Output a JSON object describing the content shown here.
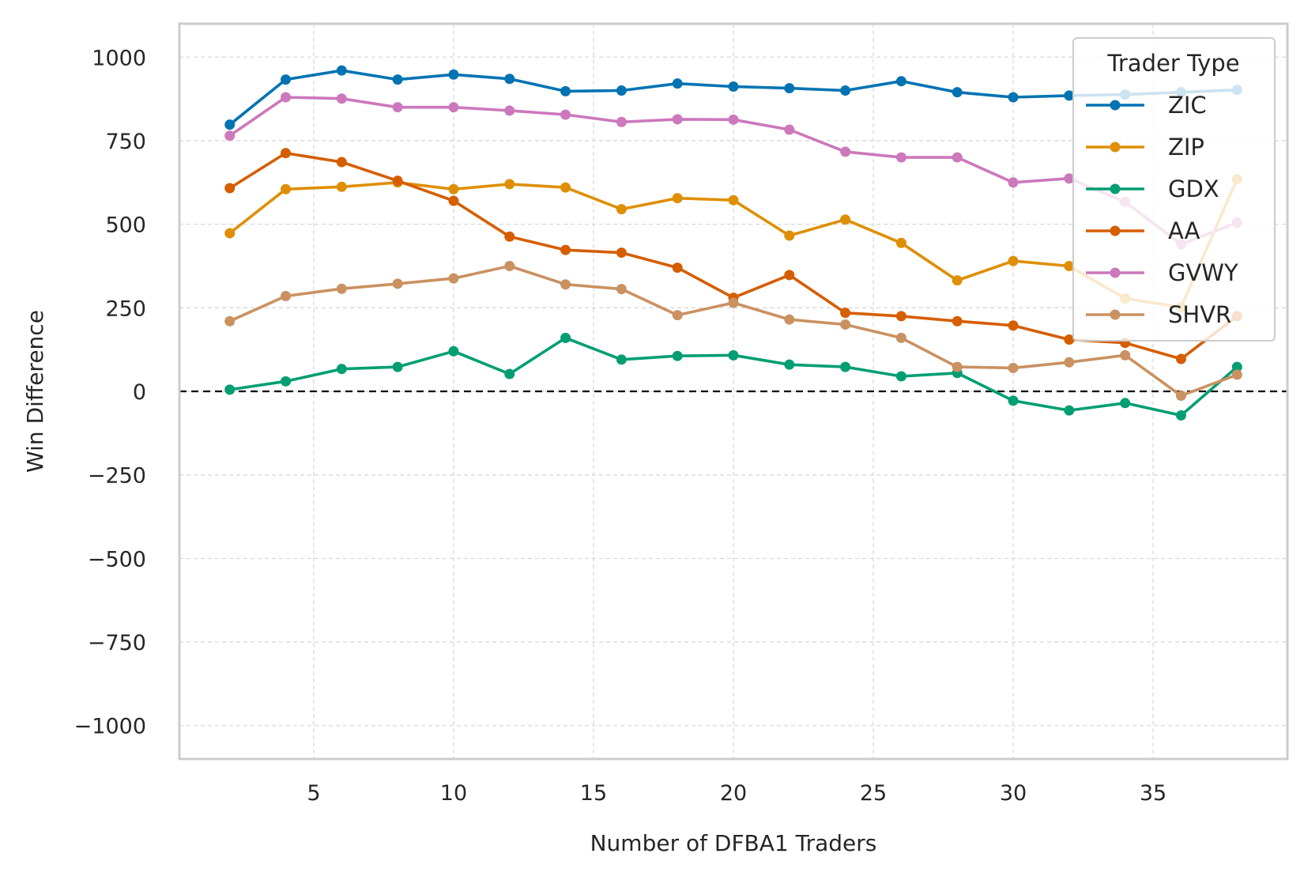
{
  "chart_data": {
    "type": "line",
    "title": "",
    "xlabel": "Number of DFBA1 Traders",
    "ylabel": "Win Difference",
    "xlim": [
      0.2,
      39.8
    ],
    "ylim": [
      -1100,
      1100
    ],
    "xticks": [
      5,
      10,
      15,
      20,
      25,
      30,
      35
    ],
    "yticks": [
      -1000,
      -750,
      -500,
      -250,
      0,
      250,
      500,
      750,
      1000
    ],
    "ytick_labels": [
      "−1000",
      "−750",
      "−500",
      "−250",
      "0",
      "250",
      "500",
      "750",
      "1000"
    ],
    "grid": true,
    "reference_line": 0,
    "legend": {
      "title": "Trader Type",
      "placement": "top-right"
    },
    "x": [
      2,
      4,
      6,
      8,
      10,
      12,
      14,
      16,
      18,
      20,
      22,
      24,
      26,
      28,
      30,
      32,
      34,
      36,
      38
    ],
    "series": [
      {
        "name": "ZIC",
        "color": "#0173b2",
        "values": [
          798,
          933,
          960,
          933,
          948,
          935,
          898,
          900,
          921,
          912,
          907,
          900,
          928,
          895,
          880,
          885,
          888,
          895,
          902
        ]
      },
      {
        "name": "ZIP",
        "color": "#de8f05",
        "values": [
          473,
          605,
          612,
          625,
          605,
          620,
          610,
          545,
          578,
          572,
          466,
          514,
          444,
          332,
          390,
          375,
          278,
          252,
          635
        ]
      },
      {
        "name": "GDX",
        "color": "#029e73",
        "values": [
          5,
          30,
          67,
          73,
          120,
          52,
          160,
          95,
          106,
          108,
          80,
          73,
          45,
          55,
          -28,
          -57,
          -35,
          -72,
          73
        ]
      },
      {
        "name": "AA",
        "color": "#d55e00",
        "values": [
          608,
          713,
          686,
          630,
          570,
          463,
          423,
          415,
          370,
          280,
          348,
          235,
          225,
          210,
          197,
          155,
          145,
          97,
          225
        ]
      },
      {
        "name": "GVWY",
        "color": "#cc78bc",
        "values": [
          765,
          880,
          876,
          850,
          850,
          840,
          828,
          806,
          814,
          813,
          783,
          717,
          700,
          700,
          625,
          637,
          567,
          440,
          505
        ]
      },
      {
        "name": "SHVR",
        "color": "#ca9161",
        "values": [
          210,
          285,
          307,
          322,
          338,
          375,
          320,
          306,
          228,
          265,
          215,
          200,
          160,
          73,
          70,
          87,
          108,
          -13,
          50
        ]
      }
    ]
  }
}
